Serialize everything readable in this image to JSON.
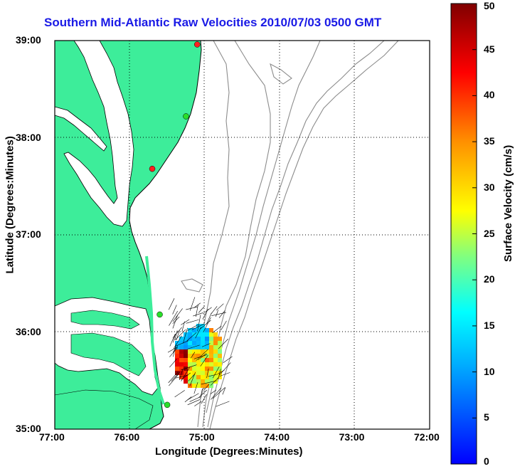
{
  "title": "Southern Mid-Atlantic Raw Velocities 2010/07/03 0500 GMT",
  "x_axis": {
    "label": "Longitude (Degrees:Minutes)",
    "ticks": [
      "77:00",
      "76:00",
      "75:00",
      "74:00",
      "73:00",
      "72:00"
    ]
  },
  "y_axis": {
    "label": "Latitude (Degrees:Minutes)",
    "ticks": [
      "39:00",
      "38:00",
      "37:00",
      "36:00",
      "35:00"
    ]
  },
  "colorbar": {
    "label": "Surface Velocity (cm/s)",
    "ticks": [
      "50",
      "45",
      "40",
      "35",
      "30",
      "25",
      "20",
      "15",
      "10",
      "5",
      "0"
    ],
    "range": [
      0,
      50
    ],
    "colormap": "jet"
  },
  "colors": {
    "land": "#3ded9a",
    "coast_line": "#000000",
    "bathymetry": "#8c8c8c",
    "title": "#1a1ae6",
    "grid": "#000000"
  },
  "map_extent": {
    "lon": [
      -77,
      -72
    ],
    "lat": [
      35,
      39
    ]
  },
  "stations": [
    {
      "lon": -75.1,
      "lat": 38.96,
      "color": "#ff2020"
    },
    {
      "lon": -75.25,
      "lat": 38.22,
      "color": "#2adf2a"
    },
    {
      "lon": -75.7,
      "lat": 37.68,
      "color": "#ff2020"
    },
    {
      "lon": -75.6,
      "lat": 36.18,
      "color": "#2adf2a"
    },
    {
      "lon": -75.5,
      "lat": 35.25,
      "color": "#2adf2a"
    }
  ]
}
